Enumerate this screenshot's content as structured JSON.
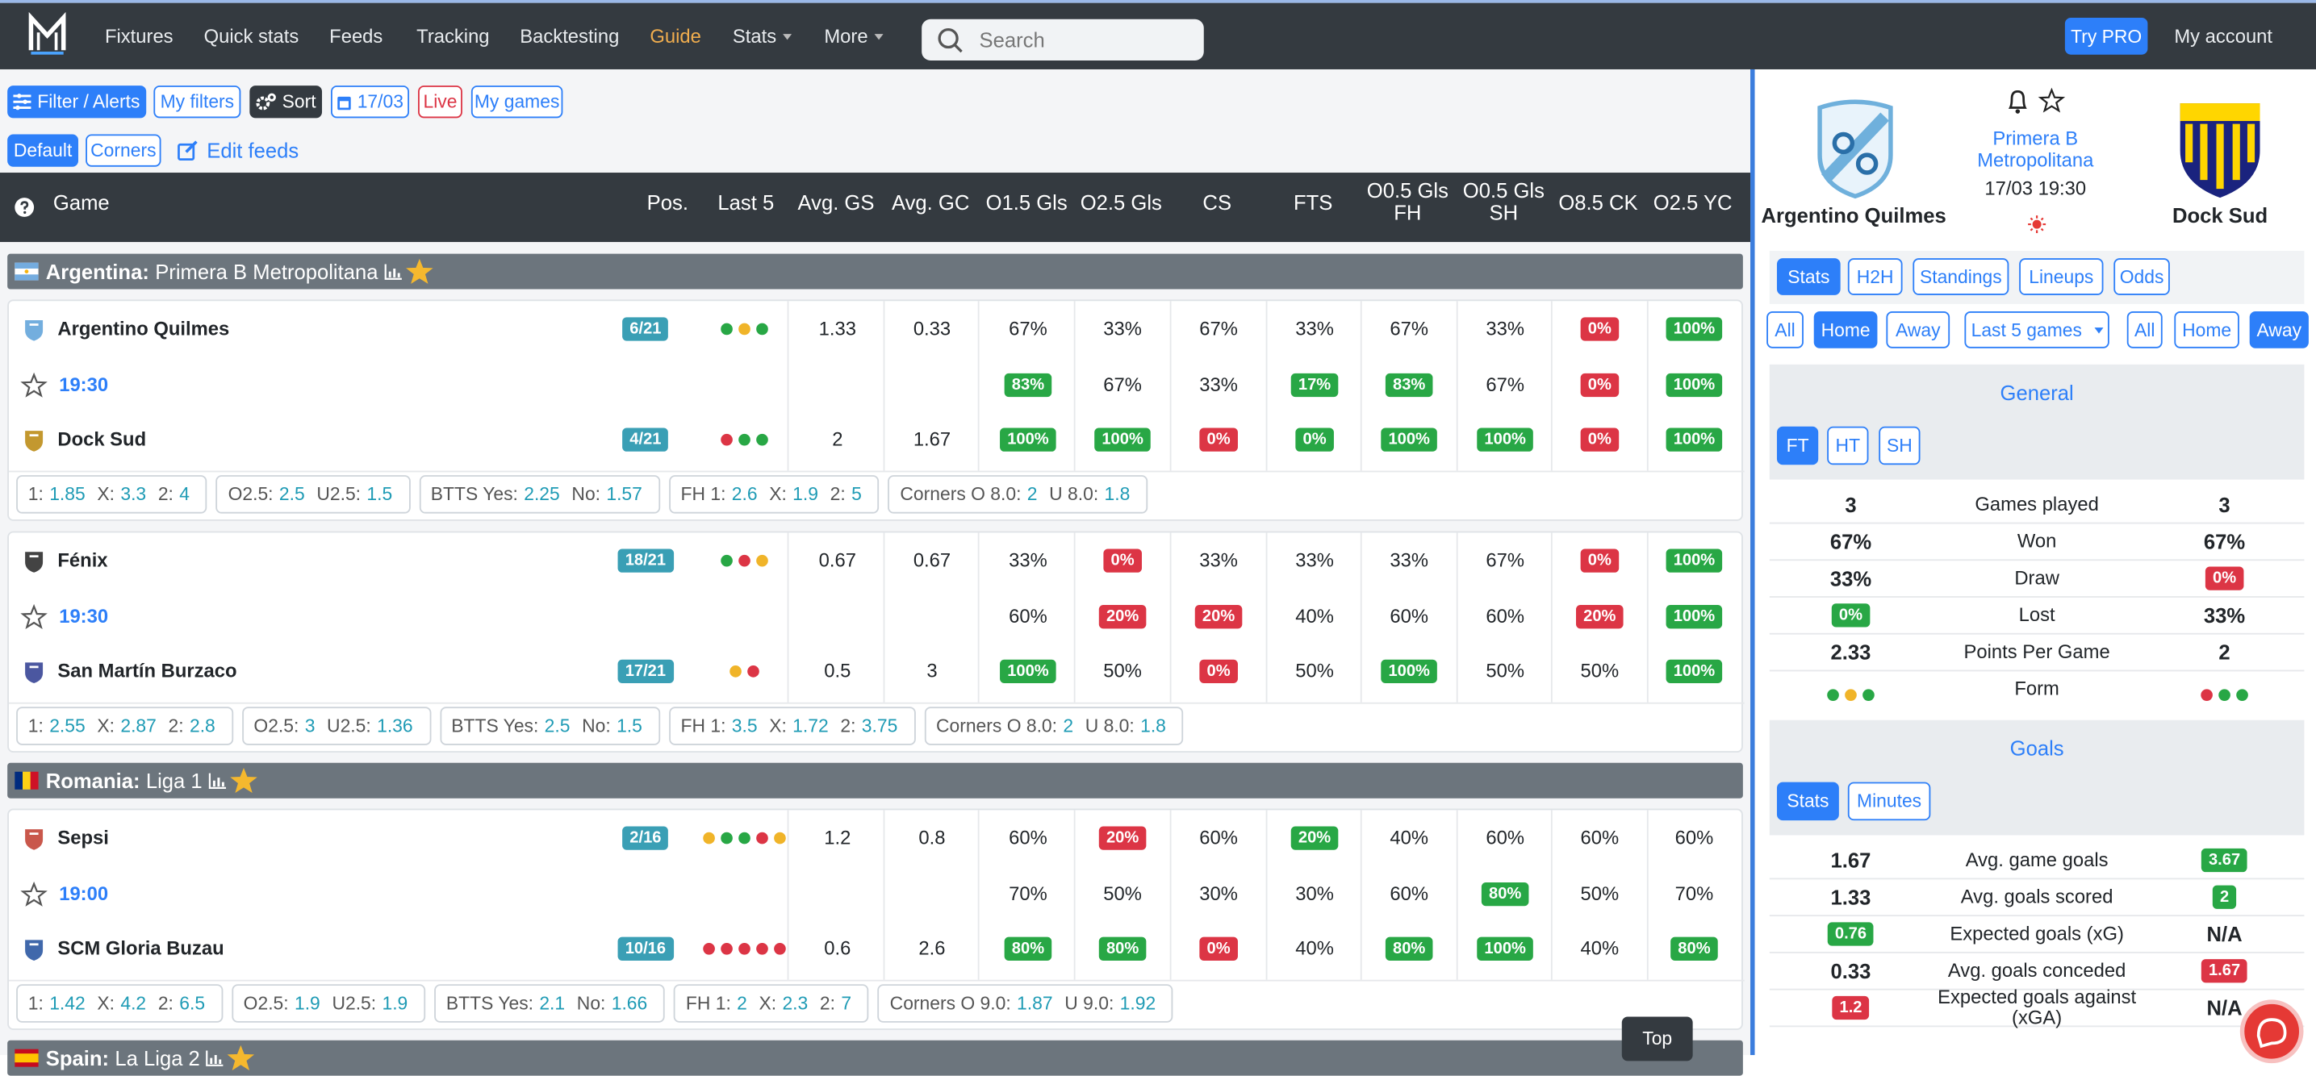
{
  "nav": {
    "links": [
      "Fixtures",
      "Quick stats",
      "Feeds",
      "Tracking",
      "Backtesting",
      "Guide",
      "Stats",
      "More"
    ],
    "search_placeholder": "Search",
    "try_pro": "Try PRO",
    "account": "My account"
  },
  "toolbar": {
    "row1": [
      "Filter / Alerts",
      "My filters",
      "Sort",
      "17/03",
      "Live",
      "My games"
    ],
    "row2": [
      "Default",
      "Corners",
      "Edit feeds"
    ]
  },
  "table_header": [
    "Game",
    "Pos.",
    "Last 5",
    "Avg. GS",
    "Avg. GC",
    "O1.5 Gls",
    "O2.5 Gls",
    "CS",
    "FTS",
    "O0.5 Gls FH",
    "O0.5 Gls SH",
    "O8.5 CK",
    "O2.5 YC"
  ],
  "leagues": [
    {
      "country": "Argentina:",
      "name": "Primera B Metropolitana",
      "flag": "argentina",
      "matches": [
        {
          "time": "19:30",
          "home": {
            "name": "Argentino Quilmes",
            "pos": "6/21",
            "form": [
              "green",
              "yellow",
              "green"
            ],
            "stats": [
              "1.33",
              "0.33",
              "67%",
              "33%",
              "67%",
              "33%",
              "67%",
              "33%",
              {
                "text": "0%",
                "badge": "red"
              },
              {
                "text": "100%",
                "badge": "green"
              }
            ]
          },
          "mid_stats": [
            null,
            null,
            {
              "text": "83%",
              "badge": "green"
            },
            "67%",
            "33%",
            {
              "text": "17%",
              "badge": "green"
            },
            {
              "text": "83%",
              "badge": "green"
            },
            "67%",
            {
              "text": "0%",
              "badge": "red"
            },
            {
              "text": "100%",
              "badge": "green"
            }
          ],
          "away": {
            "name": "Dock Sud",
            "pos": "4/21",
            "form": [
              "red",
              "green",
              "green"
            ],
            "stats": [
              "2",
              "1.67",
              {
                "text": "100%",
                "badge": "green"
              },
              {
                "text": "100%",
                "badge": "green"
              },
              {
                "text": "0%",
                "badge": "red"
              },
              {
                "text": "0%",
                "badge": "green"
              },
              {
                "text": "100%",
                "badge": "green"
              },
              {
                "text": "100%",
                "badge": "green"
              },
              {
                "text": "0%",
                "badge": "red"
              },
              {
                "text": "100%",
                "badge": "green"
              }
            ]
          },
          "odds": [
            [
              [
                "1:",
                "1.85"
              ],
              [
                "X:",
                "3.3"
              ],
              [
                "2:",
                "4"
              ]
            ],
            [
              [
                "O2.5:",
                "2.5"
              ],
              [
                "U2.5:",
                "1.5"
              ]
            ],
            [
              [
                "BTTS Yes:",
                "2.25"
              ],
              [
                "No:",
                "1.57"
              ]
            ],
            [
              [
                "FH 1:",
                "2.6"
              ],
              [
                "X:",
                "1.9"
              ],
              [
                "2:",
                "5"
              ]
            ],
            [
              [
                "Corners O 8.0:",
                "2"
              ],
              [
                "U 8.0:",
                "1.8"
              ]
            ]
          ]
        },
        {
          "time": "19:30",
          "home": {
            "name": "Fénix",
            "pos": "18/21",
            "form": [
              "green",
              "red",
              "yellow"
            ],
            "stats": [
              "0.67",
              "0.67",
              "33%",
              {
                "text": "0%",
                "badge": "red"
              },
              "33%",
              "33%",
              "33%",
              "67%",
              {
                "text": "0%",
                "badge": "red"
              },
              {
                "text": "100%",
                "badge": "green"
              }
            ]
          },
          "mid_stats": [
            null,
            null,
            "60%",
            {
              "text": "20%",
              "badge": "red"
            },
            {
              "text": "20%",
              "badge": "red"
            },
            "40%",
            "60%",
            "60%",
            {
              "text": "20%",
              "badge": "red"
            },
            {
              "text": "100%",
              "badge": "green"
            }
          ],
          "away": {
            "name": "San Martín Burzaco",
            "pos": "17/21",
            "form": [
              "yellow",
              "red"
            ],
            "stats": [
              "0.5",
              "3",
              {
                "text": "100%",
                "badge": "green"
              },
              "50%",
              {
                "text": "0%",
                "badge": "red"
              },
              "50%",
              {
                "text": "100%",
                "badge": "green"
              },
              "50%",
              "50%",
              {
                "text": "100%",
                "badge": "green"
              }
            ]
          },
          "odds": [
            [
              [
                "1:",
                "2.55"
              ],
              [
                "X:",
                "2.87"
              ],
              [
                "2:",
                "2.8"
              ]
            ],
            [
              [
                "O2.5:",
                "3"
              ],
              [
                "U2.5:",
                "1.36"
              ]
            ],
            [
              [
                "BTTS Yes:",
                "2.5"
              ],
              [
                "No:",
                "1.5"
              ]
            ],
            [
              [
                "FH 1:",
                "3.5"
              ],
              [
                "X:",
                "1.72"
              ],
              [
                "2:",
                "3.75"
              ]
            ],
            [
              [
                "Corners O 8.0:",
                "2"
              ],
              [
                "U 8.0:",
                "1.8"
              ]
            ]
          ]
        }
      ]
    },
    {
      "country": "Romania:",
      "name": "Liga 1",
      "flag": "romania",
      "matches": [
        {
          "time": "19:00",
          "home": {
            "name": "Sepsi",
            "pos": "2/16",
            "form": [
              "yellow",
              "green",
              "green",
              "red",
              "yellow"
            ],
            "stats": [
              "1.2",
              "0.8",
              "60%",
              {
                "text": "20%",
                "badge": "red"
              },
              "60%",
              {
                "text": "20%",
                "badge": "green"
              },
              "40%",
              "60%",
              "60%",
              "60%"
            ]
          },
          "mid_stats": [
            null,
            null,
            "70%",
            "50%",
            "30%",
            "30%",
            "60%",
            {
              "text": "80%",
              "badge": "green"
            },
            "50%",
            "70%"
          ],
          "away": {
            "name": "SCM Gloria Buzau",
            "pos": "10/16",
            "form": [
              "red",
              "red",
              "red",
              "red",
              "red"
            ],
            "stats": [
              "0.6",
              "2.6",
              {
                "text": "80%",
                "badge": "green"
              },
              {
                "text": "80%",
                "badge": "green"
              },
              {
                "text": "0%",
                "badge": "red"
              },
              "40%",
              {
                "text": "80%",
                "badge": "green"
              },
              {
                "text": "100%",
                "badge": "green"
              },
              "40%",
              {
                "text": "80%",
                "badge": "green"
              }
            ]
          },
          "odds": [
            [
              [
                "1:",
                "1.42"
              ],
              [
                "X:",
                "4.2"
              ],
              [
                "2:",
                "6.5"
              ]
            ],
            [
              [
                "O2.5:",
                "1.9"
              ],
              [
                "U2.5:",
                "1.9"
              ]
            ],
            [
              [
                "BTTS Yes:",
                "2.1"
              ],
              [
                "No:",
                "1.66"
              ]
            ],
            [
              [
                "FH 1:",
                "2"
              ],
              [
                "X:",
                "2.3"
              ],
              [
                "2:",
                "7"
              ]
            ],
            [
              [
                "Corners O 9.0:",
                "1.87"
              ],
              [
                "U 9.0:",
                "1.92"
              ]
            ]
          ]
        }
      ]
    },
    {
      "country": "Spain:",
      "name": "La Liga 2",
      "flag": "spain",
      "matches": []
    }
  ],
  "detail": {
    "home_team": "Argentino Quilmes",
    "away_team": "Dock Sud",
    "league": "Primera B Metropolitana",
    "datetime": "17/03 19:30",
    "tabs": [
      "Stats",
      "H2H",
      "Standings",
      "Lineups",
      "Odds"
    ],
    "filters": [
      "All",
      "Home",
      "Away",
      "Last 5 games",
      "All",
      "Home",
      "Away"
    ],
    "general": {
      "title": "General",
      "periods": [
        "FT",
        "HT",
        "SH"
      ],
      "rows": [
        {
          "home": "3",
          "label": "Games played",
          "away": "3"
        },
        {
          "home": "67%",
          "label": "Won",
          "away": "67%"
        },
        {
          "home": "33%",
          "label": "Draw",
          "away": {
            "text": "0%",
            "badge": "red"
          }
        },
        {
          "home": {
            "text": "0%",
            "badge": "green"
          },
          "label": "Lost",
          "away": "33%"
        },
        {
          "home": "2.33",
          "label": "Points Per Game",
          "away": "2"
        }
      ],
      "form": {
        "label": "Form",
        "home": [
          "green",
          "yellow",
          "green"
        ],
        "away": [
          "red",
          "green",
          "green"
        ]
      }
    },
    "goals": {
      "title": "Goals",
      "tabs": [
        "Stats",
        "Minutes"
      ],
      "rows": [
        {
          "home": "1.67",
          "label": "Avg. game goals",
          "away": {
            "text": "3.67",
            "badge": "green"
          }
        },
        {
          "home": "1.33",
          "label": "Avg. goals scored",
          "away": {
            "text": "2",
            "badge": "green"
          }
        },
        {
          "home": {
            "text": "0.76",
            "badge": "green"
          },
          "label": "Expected goals (xG)",
          "away": "N/A"
        },
        {
          "home": "0.33",
          "label": "Avg. goals conceded",
          "away": {
            "text": "1.67",
            "badge": "red"
          }
        },
        {
          "home": {
            "text": "1.2",
            "badge": "red"
          },
          "label": "Expected goals against (xGA)",
          "away": "N/A"
        }
      ]
    }
  },
  "top_button": "Top"
}
